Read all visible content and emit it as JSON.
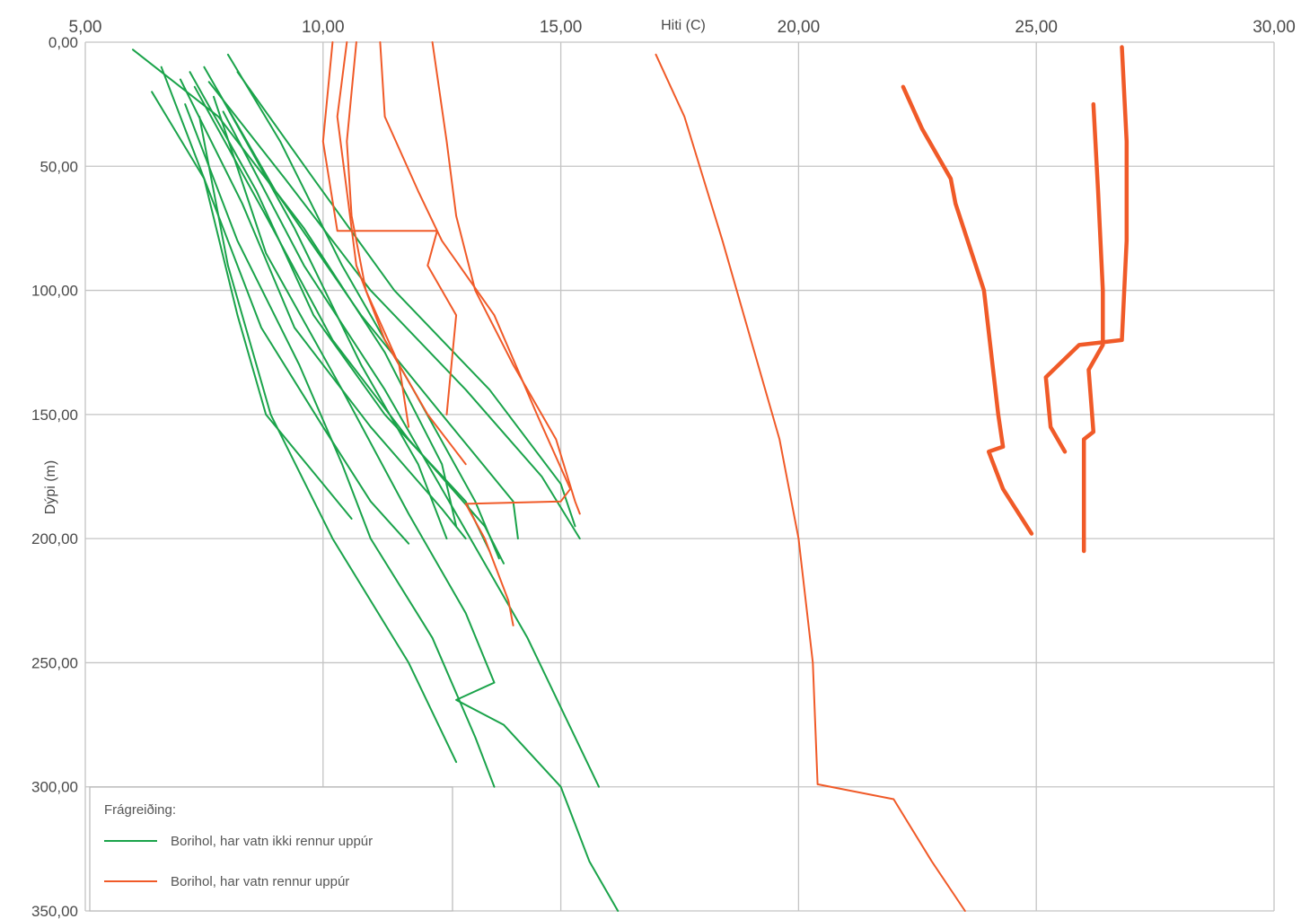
{
  "chart_data": {
    "type": "line",
    "title": "",
    "xlabel": "Hiti (C)",
    "ylabel": "Dýpi (m)",
    "xlim": [
      5,
      30
    ],
    "ylim": [
      0,
      350
    ],
    "y_inverted": true,
    "x_axis_position": "top",
    "grid": true,
    "x_ticks": [
      "5,00",
      "10,00",
      "15,00",
      "20,00",
      "25,00",
      "30,00"
    ],
    "y_ticks": [
      "0,00",
      "50,00",
      "100,00",
      "150,00",
      "200,00",
      "250,00",
      "300,00",
      "350,00"
    ],
    "legend": {
      "title": "Frágreiðing:",
      "position": "bottom-left",
      "entries": [
        {
          "label": "Borihol, har vatn ikki rennur uppúr",
          "color": "#1aa34a"
        },
        {
          "label": "Borihol, har vatn rennur uppúr",
          "color": "#f05a28"
        }
      ]
    },
    "series": [
      {
        "group": "green",
        "points": [
          [
            6.4,
            20
          ],
          [
            7.5,
            55
          ],
          [
            8.2,
            110
          ],
          [
            8.8,
            150
          ],
          [
            10.0,
            178
          ],
          [
            10.6,
            192
          ]
        ]
      },
      {
        "group": "green",
        "points": [
          [
            6.6,
            10
          ],
          [
            7.6,
            60
          ],
          [
            8.7,
            115
          ],
          [
            10.0,
            155
          ],
          [
            11.0,
            185
          ],
          [
            11.8,
            202
          ]
        ]
      },
      {
        "group": "green",
        "points": [
          [
            7.0,
            15
          ],
          [
            8.3,
            65
          ],
          [
            9.4,
            115
          ],
          [
            11.0,
            155
          ],
          [
            12.5,
            188
          ],
          [
            13.0,
            200
          ]
        ]
      },
      {
        "group": "green",
        "points": [
          [
            7.2,
            12
          ],
          [
            8.6,
            60
          ],
          [
            9.8,
            110
          ],
          [
            11.3,
            150
          ],
          [
            13.0,
            185
          ],
          [
            13.5,
            205
          ]
        ]
      },
      {
        "group": "green",
        "points": [
          [
            7.3,
            18
          ],
          [
            8.8,
            70
          ],
          [
            10.2,
            120
          ],
          [
            11.8,
            160
          ],
          [
            13.4,
            195
          ],
          [
            13.8,
            210
          ]
        ]
      },
      {
        "group": "green",
        "points": [
          [
            7.5,
            10
          ],
          [
            9.0,
            60
          ],
          [
            10.8,
            110
          ],
          [
            12.5,
            150
          ],
          [
            14.0,
            185
          ],
          [
            14.1,
            200
          ]
        ]
      },
      {
        "group": "green",
        "points": [
          [
            7.6,
            16
          ],
          [
            9.2,
            55
          ],
          [
            11.0,
            100
          ],
          [
            13.0,
            140
          ],
          [
            14.6,
            175
          ],
          [
            15.4,
            200
          ]
        ]
      },
      {
        "group": "green",
        "points": [
          [
            8.2,
            12
          ],
          [
            9.8,
            55
          ],
          [
            11.5,
            100
          ],
          [
            13.5,
            140
          ],
          [
            15.0,
            178
          ],
          [
            15.3,
            195
          ]
        ]
      },
      {
        "group": "green",
        "points": [
          [
            7.8,
            20
          ],
          [
            9.4,
            75
          ],
          [
            10.8,
            130
          ],
          [
            12.0,
            170
          ],
          [
            12.6,
            200
          ]
        ]
      },
      {
        "group": "green",
        "points": [
          [
            7.1,
            25
          ],
          [
            8.2,
            80
          ],
          [
            9.5,
            130
          ],
          [
            10.4,
            170
          ],
          [
            11.0,
            200
          ],
          [
            12.3,
            240
          ],
          [
            13.2,
            280
          ],
          [
            13.6,
            300
          ]
        ]
      },
      {
        "group": "green",
        "points": [
          [
            7.4,
            30
          ],
          [
            8.0,
            90
          ],
          [
            8.9,
            150
          ],
          [
            10.2,
            200
          ],
          [
            11.8,
            250
          ],
          [
            12.8,
            290
          ]
        ]
      },
      {
        "group": "green",
        "points": [
          [
            7.7,
            22
          ],
          [
            8.8,
            85
          ],
          [
            10.4,
            140
          ],
          [
            11.8,
            190
          ],
          [
            13.0,
            230
          ],
          [
            13.6,
            258
          ],
          [
            12.8,
            265
          ],
          [
            13.8,
            275
          ],
          [
            15.0,
            300
          ],
          [
            15.6,
            330
          ],
          [
            16.2,
            350
          ]
        ]
      },
      {
        "group": "green",
        "points": [
          [
            7.9,
            28
          ],
          [
            9.6,
            90
          ],
          [
            11.3,
            140
          ],
          [
            12.8,
            190
          ],
          [
            14.3,
            240
          ],
          [
            15.8,
            300
          ]
        ]
      },
      {
        "group": "green",
        "points": [
          [
            8.0,
            5
          ],
          [
            9.1,
            40
          ],
          [
            10.4,
            90
          ],
          [
            11.9,
            140
          ],
          [
            13.2,
            185
          ],
          [
            13.7,
            208
          ]
        ]
      },
      {
        "group": "green",
        "points": [
          [
            6.0,
            3
          ],
          [
            7.8,
            30
          ],
          [
            9.6,
            75
          ],
          [
            11.3,
            125
          ],
          [
            12.5,
            170
          ],
          [
            12.8,
            195
          ]
        ]
      },
      {
        "group": "red",
        "points": [
          [
            12.3,
            0
          ],
          [
            12.6,
            40
          ],
          [
            12.8,
            70
          ],
          [
            13.2,
            100
          ],
          [
            14.0,
            130
          ],
          [
            14.9,
            160
          ],
          [
            15.3,
            185
          ],
          [
            15.4,
            190
          ]
        ]
      },
      {
        "group": "red",
        "points": [
          [
            11.2,
            0
          ],
          [
            11.3,
            30
          ],
          [
            12.0,
            60
          ],
          [
            12.5,
            80
          ],
          [
            13.6,
            110
          ],
          [
            14.5,
            150
          ],
          [
            15.2,
            180
          ],
          [
            15.0,
            185
          ],
          [
            13.0,
            186
          ],
          [
            13.4,
            200
          ],
          [
            13.9,
            225
          ],
          [
            14.0,
            235
          ]
        ]
      },
      {
        "group": "red",
        "points": [
          [
            10.5,
            0
          ],
          [
            10.3,
            30
          ],
          [
            10.5,
            60
          ],
          [
            10.7,
            90
          ],
          [
            11.3,
            120
          ],
          [
            12.2,
            150
          ],
          [
            12.8,
            165
          ],
          [
            13.0,
            170
          ]
        ]
      },
      {
        "group": "red",
        "points": [
          [
            10.7,
            0
          ],
          [
            10.5,
            40
          ],
          [
            10.6,
            70
          ],
          [
            10.9,
            100
          ],
          [
            11.6,
            130
          ],
          [
            11.8,
            155
          ]
        ]
      },
      {
        "group": "red",
        "points": [
          [
            10.2,
            0
          ],
          [
            10.0,
            40
          ],
          [
            10.3,
            76
          ],
          [
            12.4,
            76
          ],
          [
            12.2,
            90
          ],
          [
            12.8,
            110
          ],
          [
            12.7,
            130
          ],
          [
            12.6,
            150
          ]
        ]
      },
      {
        "group": "red",
        "points": [
          [
            17.0,
            5
          ],
          [
            17.6,
            30
          ],
          [
            18.4,
            80
          ],
          [
            19.0,
            120
          ],
          [
            19.6,
            160
          ],
          [
            20.0,
            200
          ],
          [
            20.3,
            250
          ],
          [
            20.4,
            299
          ],
          [
            22.0,
            305
          ],
          [
            22.8,
            330
          ],
          [
            23.5,
            350
          ]
        ]
      },
      {
        "group": "red-thick",
        "points": [
          [
            22.2,
            18
          ],
          [
            22.6,
            35
          ],
          [
            23.2,
            55
          ],
          [
            23.3,
            65
          ],
          [
            23.9,
            100
          ],
          [
            24.2,
            150
          ],
          [
            24.3,
            163
          ],
          [
            24.0,
            165
          ],
          [
            24.3,
            180
          ],
          [
            24.8,
            195
          ],
          [
            24.9,
            198
          ]
        ]
      },
      {
        "group": "red-thick",
        "points": [
          [
            26.8,
            2
          ],
          [
            26.9,
            40
          ],
          [
            26.9,
            80
          ],
          [
            26.8,
            120
          ],
          [
            25.9,
            122
          ],
          [
            25.2,
            135
          ],
          [
            25.3,
            155
          ],
          [
            25.6,
            165
          ]
        ]
      },
      {
        "group": "red-thick",
        "points": [
          [
            26.2,
            25
          ],
          [
            26.3,
            60
          ],
          [
            26.4,
            100
          ],
          [
            26.4,
            122
          ],
          [
            26.1,
            132
          ],
          [
            26.2,
            157
          ],
          [
            26.0,
            160
          ],
          [
            26.0,
            200
          ],
          [
            26.0,
            205
          ]
        ]
      }
    ]
  }
}
